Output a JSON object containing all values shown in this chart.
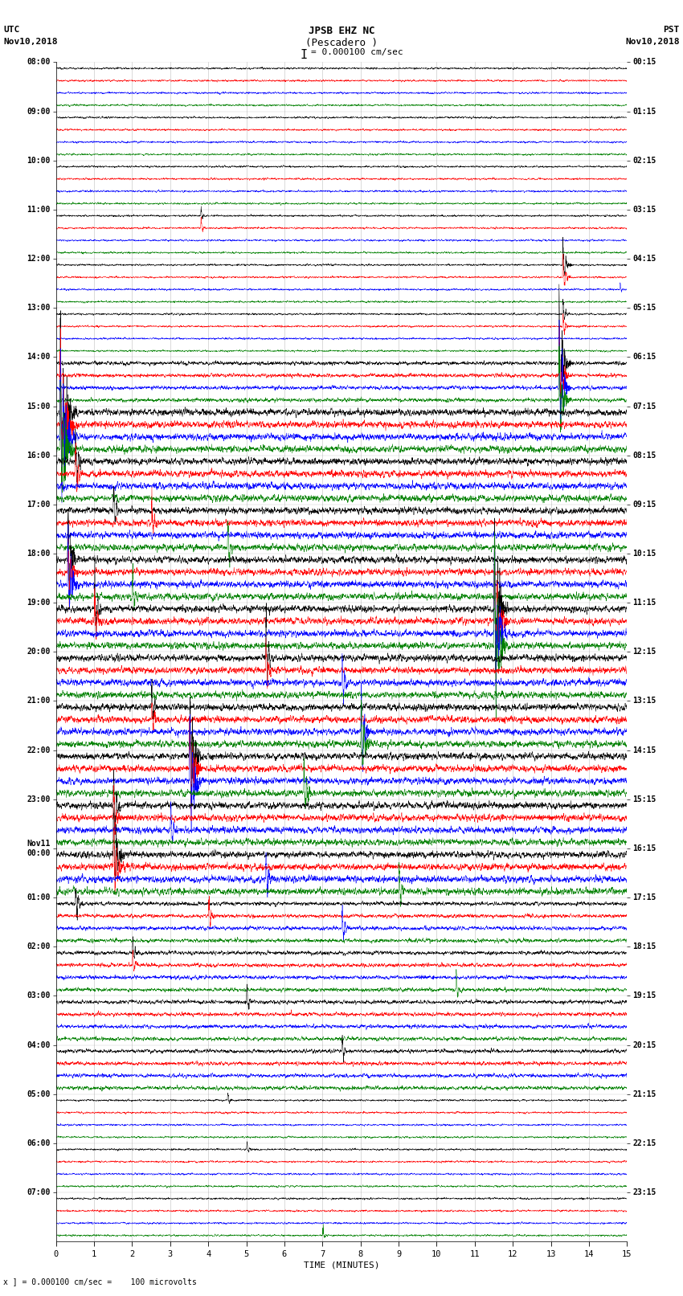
{
  "title_line1": "JPSB EHZ NC",
  "title_line2": "(Pescadero )",
  "title_scale": "I = 0.000100 cm/sec",
  "left_header_line1": "UTC",
  "left_header_line2": "Nov10,2018",
  "right_header_line1": "PST",
  "right_header_line2": "Nov10,2018",
  "xlabel": "TIME (MINUTES)",
  "footer": "x ] = 0.000100 cm/sec =    100 microvolts",
  "x_ticks": [
    0,
    1,
    2,
    3,
    4,
    5,
    6,
    7,
    8,
    9,
    10,
    11,
    12,
    13,
    14,
    15
  ],
  "utc_labels": [
    "08:00",
    "09:00",
    "10:00",
    "11:00",
    "12:00",
    "13:00",
    "14:00",
    "15:00",
    "16:00",
    "17:00",
    "18:00",
    "19:00",
    "20:00",
    "21:00",
    "22:00",
    "23:00",
    "Nov11\n00:00",
    "01:00",
    "02:00",
    "03:00",
    "04:00",
    "05:00",
    "06:00",
    "07:00"
  ],
  "pst_labels": [
    "00:15",
    "01:15",
    "02:15",
    "03:15",
    "04:15",
    "05:15",
    "06:15",
    "07:15",
    "08:15",
    "09:15",
    "10:15",
    "11:15",
    "12:15",
    "13:15",
    "14:15",
    "15:15",
    "16:15",
    "17:15",
    "18:15",
    "19:15",
    "20:15",
    "21:15",
    "22:15",
    "23:15"
  ],
  "n_rows": 24,
  "traces_per_row": 4,
  "colors": [
    "black",
    "red",
    "blue",
    "green"
  ],
  "bg_color": "#ffffff",
  "figsize": [
    8.5,
    16.13
  ],
  "dpi": 100,
  "seed": 12345,
  "n_points": 3600,
  "trace_scale": 0.38,
  "base_noise": 0.055,
  "active_rows": [
    6,
    7,
    8,
    9,
    10,
    11,
    12,
    13,
    14,
    15,
    16,
    17,
    18,
    19,
    20
  ],
  "very_active_rows": [
    7,
    8,
    9,
    10,
    11,
    12,
    13,
    14,
    15,
    16
  ],
  "event_specs": [
    [
      6,
      0,
      13.2,
      12.0,
      80
    ],
    [
      6,
      1,
      13.2,
      10.0,
      80
    ],
    [
      6,
      2,
      13.2,
      11.0,
      80
    ],
    [
      6,
      3,
      13.2,
      9.0,
      80
    ],
    [
      4,
      0,
      13.3,
      8.0,
      60
    ],
    [
      4,
      1,
      13.3,
      7.0,
      60
    ],
    [
      4,
      2,
      14.8,
      4.0,
      30
    ],
    [
      5,
      0,
      13.3,
      6.0,
      50
    ],
    [
      5,
      1,
      13.3,
      5.0,
      50
    ],
    [
      7,
      0,
      0.1,
      9.0,
      120
    ],
    [
      7,
      1,
      0.1,
      8.0,
      120
    ],
    [
      7,
      2,
      0.1,
      8.5,
      120
    ],
    [
      7,
      3,
      0.1,
      7.0,
      120
    ],
    [
      8,
      0,
      0.5,
      4.0,
      60
    ],
    [
      8,
      1,
      0.5,
      3.5,
      60
    ],
    [
      3,
      1,
      3.8,
      4.0,
      40
    ],
    [
      3,
      0,
      3.8,
      3.5,
      40
    ],
    [
      9,
      0,
      1.5,
      3.0,
      50
    ],
    [
      9,
      1,
      2.5,
      3.0,
      50
    ],
    [
      9,
      3,
      4.5,
      3.5,
      40
    ],
    [
      10,
      0,
      0.3,
      5.0,
      80
    ],
    [
      10,
      1,
      0.3,
      4.0,
      80
    ],
    [
      10,
      2,
      0.3,
      4.5,
      80
    ],
    [
      10,
      3,
      2.0,
      3.5,
      50
    ],
    [
      11,
      0,
      1.0,
      4.0,
      60
    ],
    [
      11,
      1,
      1.0,
      3.5,
      60
    ],
    [
      11,
      3,
      11.5,
      9.0,
      100
    ],
    [
      11,
      2,
      11.5,
      8.0,
      100
    ],
    [
      11,
      0,
      11.5,
      8.5,
      100
    ],
    [
      11,
      1,
      11.5,
      7.5,
      100
    ],
    [
      12,
      0,
      5.5,
      4.0,
      60
    ],
    [
      12,
      1,
      5.5,
      3.5,
      60
    ],
    [
      12,
      2,
      7.5,
      3.5,
      60
    ],
    [
      13,
      0,
      2.5,
      3.0,
      50
    ],
    [
      13,
      1,
      2.5,
      3.0,
      50
    ],
    [
      13,
      2,
      8.0,
      5.0,
      80
    ],
    [
      13,
      3,
      8.0,
      4.0,
      80
    ],
    [
      14,
      0,
      3.5,
      6.0,
      100
    ],
    [
      14,
      1,
      3.5,
      5.0,
      100
    ],
    [
      14,
      2,
      3.5,
      5.5,
      100
    ],
    [
      14,
      3,
      6.5,
      4.0,
      60
    ],
    [
      15,
      0,
      1.5,
      4.0,
      60
    ],
    [
      15,
      1,
      1.5,
      3.5,
      60
    ],
    [
      15,
      2,
      3.0,
      3.0,
      50
    ],
    [
      16,
      0,
      1.5,
      5.0,
      80
    ],
    [
      16,
      1,
      1.5,
      4.5,
      80
    ],
    [
      16,
      2,
      5.5,
      3.5,
      50
    ],
    [
      16,
      3,
      9.0,
      3.0,
      50
    ],
    [
      17,
      0,
      0.5,
      4.0,
      60
    ],
    [
      17,
      1,
      4.0,
      3.5,
      50
    ],
    [
      17,
      2,
      7.5,
      4.0,
      60
    ],
    [
      18,
      0,
      2.0,
      3.0,
      50
    ],
    [
      18,
      1,
      2.0,
      3.0,
      50
    ],
    [
      18,
      3,
      10.5,
      3.5,
      50
    ],
    [
      19,
      0,
      5.0,
      3.0,
      40
    ],
    [
      20,
      0,
      7.5,
      3.5,
      40
    ],
    [
      21,
      0,
      4.5,
      3.0,
      40
    ],
    [
      22,
      0,
      5.0,
      3.5,
      40
    ],
    [
      23,
      3,
      7.0,
      3.0,
      40
    ]
  ]
}
